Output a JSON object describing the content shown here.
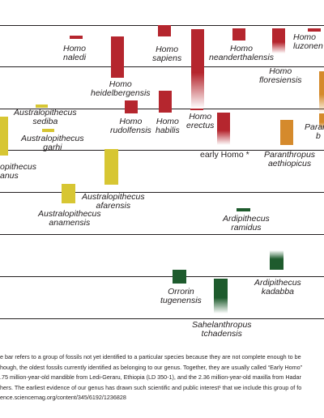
{
  "colors": {
    "homo": "#b5262e",
    "paranthropus": "#d58a2c",
    "australopithecus": "#d7c633",
    "ardipithecus": "#1e5b2d",
    "line": "#231f20"
  },
  "taxa": [
    {
      "id": "homo-naledi",
      "l1": "Homo",
      "l2": "naledi",
      "group": "homo"
    },
    {
      "id": "homo-sapiens",
      "l1": "Homo",
      "l2": "sapiens",
      "group": "homo"
    },
    {
      "id": "homo-neanderthalensis",
      "l1": "Homo",
      "l2": "neanderthalensis",
      "group": "homo"
    },
    {
      "id": "homo-luzonensis",
      "l1": "Homo",
      "l2": "luzonen",
      "group": "homo"
    },
    {
      "id": "homo-heidelbergensis",
      "l1": "Homo",
      "l2": "heidelbergensis",
      "group": "homo"
    },
    {
      "id": "homo-floresiensis",
      "l1": "Homo",
      "l2": "floresiensis",
      "group": "homo"
    },
    {
      "id": "homo-rudolfensis",
      "l1": "Homo",
      "l2": "rudolfensis",
      "group": "homo"
    },
    {
      "id": "homo-habilis",
      "l1": "Homo",
      "l2": "habilis",
      "group": "homo"
    },
    {
      "id": "homo-erectus",
      "l1": "Homo",
      "l2": "erectus",
      "group": "homo"
    },
    {
      "id": "early-homo",
      "l1": "early Homo *",
      "l2": "",
      "group": "homo"
    },
    {
      "id": "australopithecus-sediba",
      "l1": "Australopithecus",
      "l2": "sediba",
      "group": "australopithecus"
    },
    {
      "id": "australopithecus-garhi",
      "l1": "Australopithecus",
      "l2": "garhi",
      "group": "australopithecus"
    },
    {
      "id": "australopithecus-africanus",
      "l1": "opithecus",
      "l2": "anus",
      "group": "australopithecus"
    },
    {
      "id": "paranthropus-boisei",
      "l1": "Paran",
      "l2": "b",
      "group": "paranthropus"
    },
    {
      "id": "paranthropus-aethiopicus",
      "l1": "Paranthropus",
      "l2": "aethiopicus",
      "group": "paranthropus"
    },
    {
      "id": "australopithecus-afarensis",
      "l1": "Australopithecus",
      "l2": "afarensis",
      "group": "australopithecus"
    },
    {
      "id": "australopithecus-anamensis",
      "l1": "Australopithecus",
      "l2": "anamensis",
      "group": "australopithecus"
    },
    {
      "id": "ardipithecus-ramidus",
      "l1": "Ardipithecus",
      "l2": "ramidus",
      "group": "ardipithecus"
    },
    {
      "id": "ardipithecus-kadabba",
      "l1": "Ardipithecus",
      "l2": "kadabba",
      "group": "ardipithecus"
    },
    {
      "id": "orrorin-tugenensis",
      "l1": "Orrorin",
      "l2": "tugenensis",
      "group": "ardipithecus"
    },
    {
      "id": "sahelanthropus-tchadensis",
      "l1": "Sahelanthropus",
      "l2": "tchadensis",
      "group": "ardipithecus"
    }
  ],
  "caption": [
    "e bar refers to a group of fossils not yet identified to a particular species because they are not complete enough to be",
    "hough, the oldest fossils currently identified as belonging to our genus. Together, they are usually called “Early Homo”",
    ".75 million-year-old mandible from Ledi-Geraru, Ethiopia (LD 350-1), and the 2.36 million-year-old maxilla from Hadar",
    "hers. The earliest evidence of our genus has drawn such scientific and public interest¹ that we include this group of fo",
    "ence.sciencemag.org/content/345/6192/1236828"
  ]
}
